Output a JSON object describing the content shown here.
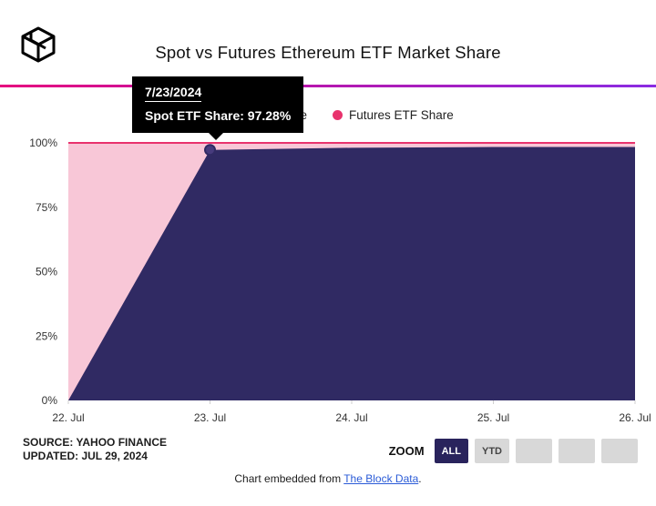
{
  "header": {
    "title": "Spot vs Futures Ethereum ETF Market Share"
  },
  "tooltip": {
    "date": "7/23/2024",
    "value": "Spot ETF Share: 97.28%"
  },
  "legend": [
    {
      "label": "Spot ETF Share",
      "color": "#302a63"
    },
    {
      "label": "Futures ETF Share",
      "color": "#e8336d"
    }
  ],
  "chart_data": {
    "type": "area",
    "stacked": true,
    "x": [
      "22. Jul",
      "23. Jul",
      "24. Jul",
      "25. Jul",
      "26. Jul"
    ],
    "series": [
      {
        "name": "Spot ETF Share",
        "values": [
          0,
          97.28,
          98.1,
          98.4,
          98.4
        ],
        "color": "#302a63"
      },
      {
        "name": "Futures ETF Share",
        "values": [
          100,
          2.72,
          1.9,
          1.6,
          1.6
        ],
        "color": "#f8c7d7",
        "line_color": "#e8336d"
      }
    ],
    "yticks": [
      "100%",
      "75%",
      "50%",
      "25%",
      "0%"
    ],
    "ylim": [
      0,
      100
    ],
    "marker": {
      "x_index": 1,
      "value": 97.28,
      "fill": "#473b7d",
      "ring": "#302a63"
    },
    "grid": false,
    "legend_position": "top"
  },
  "footer": {
    "source_line1": "SOURCE: YAHOO FINANCE",
    "source_line2": "UPDATED: JUL 29, 2024",
    "zoom_label": "ZOOM",
    "zoom_buttons": [
      "ALL",
      "YTD",
      "",
      "",
      ""
    ],
    "embed_prefix": "Chart embedded from ",
    "embed_link": "The Block Data",
    "embed_suffix": "."
  }
}
